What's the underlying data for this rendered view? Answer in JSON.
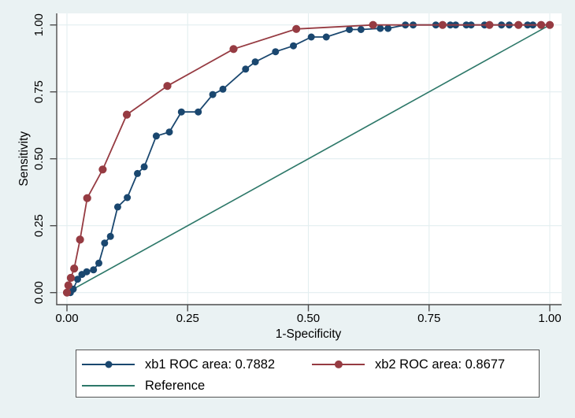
{
  "chart_data": {
    "type": "line",
    "subtype": "roc-comparison",
    "title": "",
    "xlabel": "1-Specificity",
    "ylabel": "Sensitivity",
    "xlim": [
      0,
      1
    ],
    "ylim": [
      0,
      1
    ],
    "grid": true,
    "legend_position": "bottom",
    "xticks": {
      "values": [
        0,
        0.25,
        0.5,
        0.75,
        1.0
      ],
      "labels": [
        "0.00",
        "0.25",
        "0.50",
        "0.75",
        "1.00"
      ]
    },
    "yticks": {
      "values": [
        0,
        0.25,
        0.5,
        0.75,
        1.0
      ],
      "labels": [
        "0.00",
        "0.25",
        "0.50",
        "0.75",
        "1.00"
      ]
    },
    "colors": {
      "background": "#eaf2f3",
      "plot_bg": "#ffffff",
      "grid": "#e3eef0",
      "axis": "#4d4d4d",
      "text": "#000000",
      "legend_border": "#545454"
    },
    "series": [
      {
        "id": "xb1",
        "name": "xb1 ROC area: 0.7882",
        "roc_area": 0.7882,
        "color": "#1a476f",
        "marker": "circle",
        "marker_radius": 4.5,
        "line_width": 1.8,
        "points": [
          [
            0.0,
            0.0
          ],
          [
            0.007,
            0.0
          ],
          [
            0.013,
            0.013
          ],
          [
            0.022,
            0.05
          ],
          [
            0.031,
            0.068
          ],
          [
            0.041,
            0.078
          ],
          [
            0.055,
            0.085
          ],
          [
            0.066,
            0.11
          ],
          [
            0.078,
            0.185
          ],
          [
            0.09,
            0.21
          ],
          [
            0.105,
            0.32
          ],
          [
            0.125,
            0.355
          ],
          [
            0.146,
            0.445
          ],
          [
            0.16,
            0.47
          ],
          [
            0.185,
            0.585
          ],
          [
            0.212,
            0.6
          ],
          [
            0.237,
            0.675
          ],
          [
            0.272,
            0.675
          ],
          [
            0.302,
            0.74
          ],
          [
            0.323,
            0.76
          ],
          [
            0.37,
            0.835
          ],
          [
            0.39,
            0.862
          ],
          [
            0.432,
            0.9
          ],
          [
            0.469,
            0.922
          ],
          [
            0.506,
            0.955
          ],
          [
            0.537,
            0.955
          ],
          [
            0.585,
            0.983
          ],
          [
            0.609,
            0.983
          ],
          [
            0.649,
            0.987
          ],
          [
            0.665,
            0.987
          ],
          [
            0.701,
            1.0
          ],
          [
            0.717,
            1.0
          ],
          [
            0.764,
            1.0
          ],
          [
            0.794,
            1.0
          ],
          [
            0.805,
            1.0
          ],
          [
            0.827,
            1.0
          ],
          [
            0.837,
            1.0
          ],
          [
            0.865,
            1.0
          ],
          [
            0.9,
            1.0
          ],
          [
            0.916,
            1.0
          ],
          [
            0.954,
            1.0
          ],
          [
            0.965,
            1.0
          ],
          [
            1.0,
            1.0
          ]
        ]
      },
      {
        "id": "xb2",
        "name": "xb2 ROC area: 0.8677",
        "roc_area": 0.8677,
        "color": "#963b42",
        "marker": "circle",
        "marker_radius": 5.1,
        "line_width": 1.8,
        "points": [
          [
            0.0,
            0.0
          ],
          [
            0.003,
            0.027
          ],
          [
            0.008,
            0.055
          ],
          [
            0.015,
            0.09
          ],
          [
            0.027,
            0.198
          ],
          [
            0.042,
            0.353
          ],
          [
            0.074,
            0.46
          ],
          [
            0.124,
            0.665
          ],
          [
            0.208,
            0.772
          ],
          [
            0.345,
            0.91
          ],
          [
            0.475,
            0.985
          ],
          [
            0.634,
            1.0
          ],
          [
            0.778,
            1.0
          ],
          [
            0.875,
            1.0
          ],
          [
            0.935,
            1.0
          ],
          [
            0.982,
            1.0
          ],
          [
            1.0,
            1.0
          ]
        ]
      },
      {
        "id": "reference",
        "name": "Reference",
        "color": "#2d7869",
        "marker": "none",
        "marker_radius": 0,
        "line_width": 1.6,
        "points": [
          [
            0,
            0
          ],
          [
            1,
            1
          ]
        ]
      }
    ]
  }
}
